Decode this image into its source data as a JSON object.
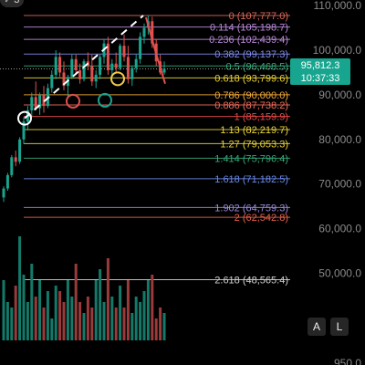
{
  "header": {
    "back_label": "3"
  },
  "price": {
    "current": "95,812.3",
    "countdown": "10:37:33"
  },
  "buttons": {
    "auto": "A",
    "log": "L"
  },
  "y_axis": {
    "ticks": [
      "110,000.0",
      "100,000.0",
      "90,000.0",
      "80,000.0",
      "70,000.0",
      "60,000.0",
      "50,000.0",
      "950.0"
    ]
  },
  "colors": {
    "background": "#000000",
    "up": "#18a58f",
    "down": "#e0504f",
    "ref_line": "#ffffff"
  },
  "chart_data": {
    "type": "candlestick",
    "y_axis_values": [
      110000,
      100000,
      90000,
      80000,
      70000,
      60000,
      50000
    ],
    "current_price": 95812.3,
    "fibonacci_levels": [
      {
        "ratio": "0",
        "price": 107777.0,
        "label": "0 (107,777.0)",
        "color": "#d8685a"
      },
      {
        "ratio": "0.114",
        "price": 105198.7,
        "label": "0.114 (105,198.7)",
        "color": "#b98ad8"
      },
      {
        "ratio": "0.236",
        "price": 102439.4,
        "label": "0.236 (102,439.4)",
        "color": "#b98ad8"
      },
      {
        "ratio": "0.382",
        "price": 99137.3,
        "label": "0.382 (99,137.3)",
        "color": "#7d8ae8"
      },
      {
        "ratio": "0.5",
        "price": 96468.5,
        "label": "0.5 (96,468.5)",
        "color": "#36a878"
      },
      {
        "ratio": "0.618",
        "price": 93799.6,
        "label": "0.618 (93,799.6)",
        "color": "#e8d23a"
      },
      {
        "ratio": "0.786",
        "price": 90000.0,
        "label": "0.786 (90,000.0)",
        "color": "#f2a93a"
      },
      {
        "ratio": "0.886",
        "price": 87738.2,
        "label": "0.886 (87,738.2)",
        "color": "#ee6a5a"
      },
      {
        "ratio": "1",
        "price": 85159.9,
        "label": "1 (85,159.9)",
        "color": "#e84a4a"
      },
      {
        "ratio": "1.13",
        "price": 82219.7,
        "label": "1.13 (82,219.7)",
        "color": "#e8d23a"
      },
      {
        "ratio": "1.27",
        "price": 79053.3,
        "label": "1.27 (79,053.3)",
        "color": "#e8d23a"
      },
      {
        "ratio": "1.414",
        "price": 75796.4,
        "label": "1.414 (75,796.4)",
        "color": "#36a878"
      },
      {
        "ratio": "1.618",
        "price": 71182.5,
        "label": "1.618 (71,182.5)",
        "color": "#6a8ae8"
      },
      {
        "ratio": "1.902",
        "price": 64759.3,
        "label": "1.902 (64,759.3)",
        "color": "#9a8ad8"
      },
      {
        "ratio": "2",
        "price": 62542.8,
        "label": "2 (62,542.8)",
        "color": "#e8604a"
      },
      {
        "ratio": "2.618",
        "price": 48565.4,
        "label": "2.618 (48,565.4)",
        "color": "#d0d0d0"
      }
    ],
    "candles": [
      {
        "o": 67000,
        "h": 69500,
        "l": 66000,
        "c": 69000
      },
      {
        "o": 69000,
        "h": 72500,
        "l": 68500,
        "c": 72000
      },
      {
        "o": 72000,
        "h": 76500,
        "l": 71500,
        "c": 76000
      },
      {
        "o": 76000,
        "h": 77500,
        "l": 74000,
        "c": 75000
      },
      {
        "o": 75000,
        "h": 80500,
        "l": 74500,
        "c": 80000
      },
      {
        "o": 80000,
        "h": 85000,
        "l": 79000,
        "c": 84000
      },
      {
        "o": 84000,
        "h": 87500,
        "l": 82000,
        "c": 86500
      },
      {
        "o": 86500,
        "h": 90500,
        "l": 85000,
        "c": 89500
      },
      {
        "o": 89500,
        "h": 93000,
        "l": 86500,
        "c": 87000
      },
      {
        "o": 87000,
        "h": 90500,
        "l": 85500,
        "c": 90000
      },
      {
        "o": 90000,
        "h": 92000,
        "l": 86000,
        "c": 87500
      },
      {
        "o": 87500,
        "h": 92500,
        "l": 87000,
        "c": 91500
      },
      {
        "o": 91500,
        "h": 95500,
        "l": 90500,
        "c": 94500
      },
      {
        "o": 94500,
        "h": 100000,
        "l": 93500,
        "c": 98500
      },
      {
        "o": 98500,
        "h": 99500,
        "l": 94000,
        "c": 95000
      },
      {
        "o": 95000,
        "h": 97500,
        "l": 91000,
        "c": 92000
      },
      {
        "o": 92000,
        "h": 94500,
        "l": 89500,
        "c": 94000
      },
      {
        "o": 94000,
        "h": 99000,
        "l": 93500,
        "c": 98000
      },
      {
        "o": 98000,
        "h": 99000,
        "l": 94500,
        "c": 95500
      },
      {
        "o": 95500,
        "h": 97000,
        "l": 92500,
        "c": 93500
      },
      {
        "o": 93500,
        "h": 98000,
        "l": 93000,
        "c": 97500
      },
      {
        "o": 97500,
        "h": 99500,
        "l": 95500,
        "c": 96500
      },
      {
        "o": 96500,
        "h": 99000,
        "l": 92000,
        "c": 93000
      },
      {
        "o": 93000,
        "h": 95500,
        "l": 91500,
        "c": 94500
      },
      {
        "o": 94500,
        "h": 99000,
        "l": 93500,
        "c": 98500
      },
      {
        "o": 98500,
        "h": 102500,
        "l": 97000,
        "c": 101500
      },
      {
        "o": 101500,
        "h": 103000,
        "l": 94500,
        "c": 95500
      },
      {
        "o": 95500,
        "h": 98000,
        "l": 93500,
        "c": 97000
      },
      {
        "o": 97000,
        "h": 99500,
        "l": 95000,
        "c": 96000
      },
      {
        "o": 96000,
        "h": 101500,
        "l": 95500,
        "c": 101000
      },
      {
        "o": 101000,
        "h": 103500,
        "l": 97500,
        "c": 98500
      },
      {
        "o": 98500,
        "h": 101000,
        "l": 92500,
        "c": 93500
      },
      {
        "o": 93500,
        "h": 96500,
        "l": 92000,
        "c": 96000
      },
      {
        "o": 96000,
        "h": 99000,
        "l": 95000,
        "c": 98000
      },
      {
        "o": 98000,
        "h": 104000,
        "l": 97000,
        "c": 103000
      },
      {
        "o": 103000,
        "h": 106000,
        "l": 101500,
        "c": 105000
      },
      {
        "o": 105000,
        "h": 107777,
        "l": 103500,
        "c": 106500
      },
      {
        "o": 106500,
        "h": 107500,
        "l": 100500,
        "c": 101500
      },
      {
        "o": 101500,
        "h": 102500,
        "l": 96500,
        "c": 97500
      },
      {
        "o": 97500,
        "h": 99000,
        "l": 94500,
        "c": 95000
      },
      {
        "o": 95000,
        "h": 97500,
        "l": 94500,
        "c": 95812.3
      }
    ],
    "volume_relative": [
      0.55,
      0.35,
      0.3,
      0.5,
      0.95,
      0.6,
      0.35,
      0.7,
      0.4,
      0.55,
      0.3,
      0.45,
      0.2,
      0.5,
      0.45,
      0.35,
      0.55,
      0.4,
      0.7,
      0.35,
      0.25,
      0.4,
      0.3,
      0.55,
      0.65,
      0.35,
      0.75,
      0.4,
      0.3,
      0.5,
      0.3,
      0.55,
      0.25,
      0.4,
      0.35,
      0.45,
      0.55,
      0.6,
      0.2,
      0.3,
      0.25
    ],
    "annotations": {
      "trendline": "dashed white line from swing low to the 107,777.0 high",
      "circles": [
        {
          "color": "#ffffff",
          "at": "first swing low"
        },
        {
          "color": "#e0504f",
          "at": "low near 90,000.0"
        },
        {
          "color": "#18a58f",
          "at": "low near 90,000.0"
        },
        {
          "color": "#f2c94c",
          "at": "low near 93,799.6"
        }
      ],
      "projection_arrow": "red line from the high down to ~93,000"
    }
  }
}
